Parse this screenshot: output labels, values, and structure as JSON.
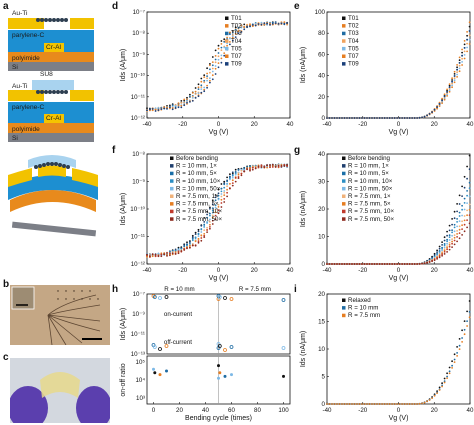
{
  "panels": {
    "a": {
      "label": "a",
      "layers": {
        "au_ti": "Au-Ti",
        "parylene": "parylene-C",
        "cr_al": "Cr-Al",
        "polyimide": "polyimide",
        "si": "Si",
        "su8": "SU8"
      }
    },
    "b": {
      "label": "b"
    },
    "c": {
      "label": "c"
    },
    "d": {
      "label": "d"
    },
    "e": {
      "label": "e"
    },
    "f": {
      "label": "f"
    },
    "g": {
      "label": "g"
    },
    "h": {
      "label": "h",
      "header_left": "R = 10 mm",
      "header_right": "R = 7.5 mm",
      "text_on": "on-current",
      "text_off": "off-current"
    },
    "i": {
      "label": "i"
    }
  },
  "colors": {
    "au_ti": "#f2c200",
    "parylene": "#1d8fd1",
    "cr_al": "#f5c400",
    "polyimide": "#e88a1c",
    "si": "#7c7f87",
    "su8": "#a9d3ef",
    "black": "#111111",
    "blue": "#1f6ca3",
    "orange": "#e67e22",
    "lightblue": "#7db9e6",
    "red": "#c0392b",
    "darkred": "#8e2b1f",
    "peach": "#f0a35e",
    "navy": "#1a3f7a"
  },
  "chart_data": [
    {
      "panel": "d",
      "type": "scatter",
      "yscale": "log",
      "xlabel": "Vg (V)",
      "ylabel": "Ids (A/μm)",
      "xlim": [
        -40,
        40
      ],
      "ylim": [
        1e-13,
        1e-07
      ],
      "xticks": [
        "-40",
        "-20",
        "0",
        "20",
        "40"
      ],
      "yticks": [
        "10⁻⁷",
        "10⁻⁸",
        "10⁻⁹",
        "10⁻¹⁰",
        "10⁻¹¹",
        "10⁻¹²"
      ],
      "series": [
        {
          "name": "T01",
          "threshold": -10
        },
        {
          "name": "T02",
          "threshold": -9
        },
        {
          "name": "T03",
          "threshold": -8
        },
        {
          "name": "T04",
          "threshold": -7
        },
        {
          "name": "T05",
          "threshold": -6
        },
        {
          "name": "T07",
          "threshold": -5
        },
        {
          "name": "T09",
          "threshold": -4
        }
      ]
    },
    {
      "panel": "e",
      "type": "scatter",
      "yscale": "linear",
      "xlabel": "Vg (V)",
      "ylabel": "Ids (nA/μm)",
      "xlim": [
        -40,
        40
      ],
      "ylim": [
        0,
        120
      ],
      "xticks": [
        "-40",
        "-20",
        "0",
        "20",
        "40"
      ],
      "yticks": [
        "0",
        "20",
        "40",
        "60",
        "80",
        "100"
      ],
      "series": [
        {
          "name": "T01"
        },
        {
          "name": "T02"
        },
        {
          "name": "T03"
        },
        {
          "name": "T04"
        },
        {
          "name": "T05"
        },
        {
          "name": "T07"
        },
        {
          "name": "T09"
        }
      ]
    },
    {
      "panel": "f",
      "type": "scatter",
      "yscale": "log",
      "xlabel": "Vg (V)",
      "ylabel": "Ids (A/μm)",
      "xlim": [
        -40,
        40
      ],
      "ylim": [
        1e-13,
        1e-07
      ],
      "xticks": [
        "-40",
        "-20",
        "0",
        "20",
        "40"
      ],
      "yticks": [
        "10⁻⁸",
        "10⁻⁹",
        "10⁻¹⁰",
        "10⁻¹¹",
        "10⁻¹²"
      ],
      "series": [
        {
          "name": "Before bending"
        },
        {
          "name": "R = 10 mm, 1×"
        },
        {
          "name": "R = 10 mm, 5×"
        },
        {
          "name": "R = 10 mm, 10×"
        },
        {
          "name": "R = 10 mm, 50×"
        },
        {
          "name": "R = 7.5 mm, 1×"
        },
        {
          "name": "R = 7.5 mm, 5×"
        },
        {
          "name": "R = 7.5 mm, 10×"
        },
        {
          "name": "R = 7.5 mm, 50×"
        }
      ]
    },
    {
      "panel": "g",
      "type": "scatter",
      "yscale": "linear",
      "xlabel": "Vg (V)",
      "ylabel": "Ids (nA/μm)",
      "xlim": [
        -40,
        40
      ],
      "ylim": [
        0,
        40
      ],
      "xticks": [
        "-40",
        "-20",
        "0",
        "20",
        "40"
      ],
      "yticks": [
        "0",
        "10",
        "20",
        "30",
        "40"
      ],
      "series": [
        {
          "name": "Before bending"
        },
        {
          "name": "R = 10 mm, 1×"
        },
        {
          "name": "R = 10 mm, 5×"
        },
        {
          "name": "R = 10 mm, 10×"
        },
        {
          "name": "R = 10 mm, 50×"
        },
        {
          "name": "R = 7.5 mm, 1×"
        },
        {
          "name": "R = 7.5 mm, 5×"
        },
        {
          "name": "R = 7.5 mm, 10×"
        },
        {
          "name": "R = 7.5 mm, 50×"
        }
      ]
    },
    {
      "panel": "h",
      "type": "scatter",
      "xlabel": "Bending cycle (times)",
      "ylabel_top": "Ids (A/μm)",
      "ylabel_bottom": "on-off ratio",
      "xlim": [
        -5,
        105
      ],
      "xticks": [
        "0",
        "20",
        "40",
        "60",
        "80",
        "100"
      ],
      "yticks_top": [
        "10⁻⁷",
        "10⁻⁹",
        "10⁻¹¹",
        "10⁻¹³"
      ],
      "yticks_bottom": [
        "10⁵",
        "10⁴",
        "10³"
      ],
      "x": [
        0,
        1,
        5,
        10,
        50,
        50,
        51,
        55,
        60,
        100
      ],
      "on_current_exp": [
        -7.2,
        -7.3,
        -7.4,
        -7.3,
        -7.5,
        -7.2,
        -7.3,
        -7.4,
        -7.5,
        -7.6
      ],
      "off_current_exp": [
        -12.1,
        -12.3,
        -12.5,
        -12.2,
        -12.4,
        -12.0,
        -12.2,
        -12.6,
        -12.3,
        -12.4
      ],
      "on_off_ratio_exp": [
        4.6,
        4.4,
        4.3,
        4.5,
        4.1,
        4.8,
        4.4,
        4.2,
        4.3,
        4.2
      ]
    },
    {
      "panel": "i",
      "type": "scatter",
      "yscale": "linear",
      "xlabel": "Vg (V)",
      "ylabel": "Ids (nA/μm)",
      "xlim": [
        -40,
        40
      ],
      "ylim": [
        0,
        20
      ],
      "xticks": [
        "-40",
        "-20",
        "0",
        "20",
        "40"
      ],
      "yticks": [
        "0",
        "5",
        "10",
        "15",
        "20"
      ],
      "series": [
        {
          "name": "Relaxed"
        },
        {
          "name": "R = 10 mm"
        },
        {
          "name": "R = 7.5 mm"
        }
      ]
    }
  ]
}
